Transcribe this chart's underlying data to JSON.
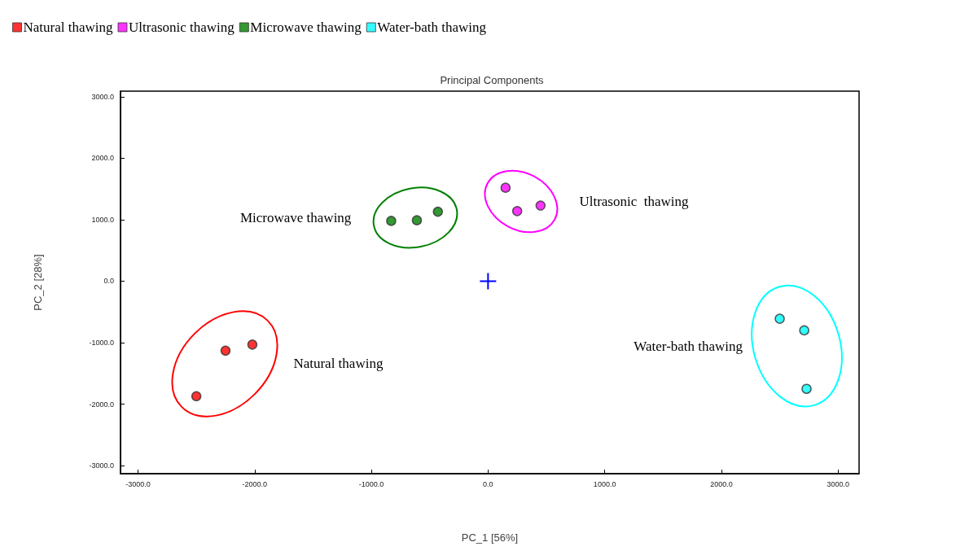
{
  "chart_data": {
    "type": "scatter",
    "title": "Principal Components",
    "xlabel": "PC_1 [56%]",
    "ylabel": "PC_2 [28%]",
    "series": [
      {
        "name": "Natural thawing",
        "color": "#ff0000",
        "x": [
          -2500,
          -2250,
          -2020
        ],
        "values": [
          -1870,
          -1130,
          -1030
        ]
      },
      {
        "name": "Ultrasonic thawing",
        "color": "#ff00ff",
        "x": [
          150,
          250,
          450
        ],
        "values": [
          1520,
          1140,
          1230
        ]
      },
      {
        "name": "Microwave thawing",
        "color": "#008000",
        "x": [
          -830,
          -610,
          -430
        ],
        "values": [
          980,
          990,
          1130
        ]
      },
      {
        "name": "Water-bath thawing",
        "color": "#00ffff",
        "x": [
          2500,
          2710,
          2730
        ],
        "values": [
          -610,
          -800,
          -1750
        ]
      }
    ],
    "annotations": [
      "Natural thawing",
      "Ultrasonic  thawing",
      "Microwave thawing",
      "Water-bath thawing"
    ],
    "xlim": [
      -3150,
      3180
    ],
    "ylim": [
      -3130,
      3090
    ],
    "xticks": [
      {
        "value": -3000,
        "label": "-3000.0"
      },
      {
        "value": -2000,
        "label": "-2000.0"
      },
      {
        "value": -1000,
        "label": "-1000.0"
      },
      {
        "value": 0,
        "label": "0.0"
      },
      {
        "value": 1000,
        "label": "1000.0"
      },
      {
        "value": 2000,
        "label": "2000.0"
      },
      {
        "value": 3000,
        "label": "3000.0"
      }
    ],
    "yticks": [
      {
        "value": -3000,
        "label": "-3000.0"
      },
      {
        "value": -2000,
        "label": "-2000.0"
      },
      {
        "value": -1000,
        "label": "-1000.0"
      },
      {
        "value": 0,
        "label": "0.0"
      },
      {
        "value": 1000,
        "label": "1000.0"
      },
      {
        "value": 2000,
        "label": "2000.0"
      },
      {
        "value": 3000,
        "label": "3000.0"
      }
    ],
    "grid": false,
    "legend": "top left",
    "marker": "circle"
  }
}
